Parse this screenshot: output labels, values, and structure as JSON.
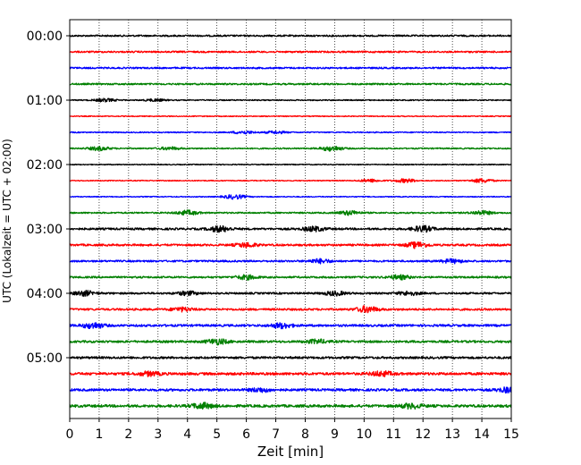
{
  "chart_data": {
    "type": "line",
    "title": "",
    "xlabel": "Zeit  [min]",
    "ylabel": "UTC (Lokalzeit = UTC + 02:00)",
    "xlim": [
      0,
      15
    ],
    "x_ticks": [
      "0",
      "1",
      "2",
      "3",
      "4",
      "5",
      "6",
      "7",
      "8",
      "9",
      "10",
      "11",
      "12",
      "13",
      "14",
      "15"
    ],
    "y_tick_labels": [
      "00:00",
      "01:00",
      "02:00",
      "03:00",
      "04:00",
      "05:00"
    ],
    "grid": "vertical dotted lines at each minute",
    "colors": [
      "#000000",
      "#ff0000",
      "#0000ff",
      "#008000"
    ],
    "traces": [
      {
        "start": "00:00",
        "color": "#000000",
        "noise": 0.9,
        "bursts": []
      },
      {
        "start": "00:15",
        "color": "#ff0000",
        "noise": 0.9,
        "bursts": []
      },
      {
        "start": "00:30",
        "color": "#0000ff",
        "noise": 0.9,
        "bursts": []
      },
      {
        "start": "00:45",
        "color": "#008000",
        "noise": 0.9,
        "bursts": []
      },
      {
        "start": "01:00",
        "color": "#000000",
        "noise": 0.6,
        "bursts": [
          {
            "t": 1.2,
            "a": 1.6
          },
          {
            "t": 2.9,
            "a": 1.2
          }
        ]
      },
      {
        "start": "01:15",
        "color": "#ff0000",
        "noise": 0.5,
        "bursts": []
      },
      {
        "start": "01:30",
        "color": "#0000ff",
        "noise": 0.6,
        "bursts": [
          {
            "t": 5.9,
            "a": 1.6
          },
          {
            "t": 7.0,
            "a": 1.3
          }
        ]
      },
      {
        "start": "01:45",
        "color": "#008000",
        "noise": 0.7,
        "bursts": [
          {
            "t": 1.0,
            "a": 2.0
          },
          {
            "t": 3.4,
            "a": 1.4
          },
          {
            "t": 8.9,
            "a": 2.6
          }
        ]
      },
      {
        "start": "02:00",
        "color": "#000000",
        "noise": 0.5,
        "bursts": []
      },
      {
        "start": "02:15",
        "color": "#ff0000",
        "noise": 0.5,
        "bursts": [
          {
            "t": 10.2,
            "a": 1.6
          },
          {
            "t": 11.4,
            "a": 2.0
          },
          {
            "t": 14.0,
            "a": 2.2
          }
        ]
      },
      {
        "start": "02:30",
        "color": "#0000ff",
        "noise": 0.5,
        "bursts": [
          {
            "t": 5.6,
            "a": 2.4
          }
        ]
      },
      {
        "start": "02:45",
        "color": "#008000",
        "noise": 0.8,
        "bursts": [
          {
            "t": 4.0,
            "a": 2.4
          },
          {
            "t": 9.5,
            "a": 2.2
          },
          {
            "t": 14.0,
            "a": 2.0
          }
        ]
      },
      {
        "start": "03:00",
        "color": "#000000",
        "noise": 1.1,
        "bursts": [
          {
            "t": 5.1,
            "a": 3.0
          },
          {
            "t": 8.3,
            "a": 2.4
          },
          {
            "t": 12.0,
            "a": 3.0
          }
        ]
      },
      {
        "start": "03:15",
        "color": "#ff0000",
        "noise": 1.1,
        "bursts": [
          {
            "t": 6.0,
            "a": 2.4
          },
          {
            "t": 11.8,
            "a": 3.0
          }
        ]
      },
      {
        "start": "03:30",
        "color": "#0000ff",
        "noise": 1.0,
        "bursts": [
          {
            "t": 8.5,
            "a": 2.2
          },
          {
            "t": 13.0,
            "a": 2.0
          }
        ]
      },
      {
        "start": "03:45",
        "color": "#008000",
        "noise": 1.0,
        "bursts": [
          {
            "t": 6.0,
            "a": 2.2
          },
          {
            "t": 11.2,
            "a": 2.2
          }
        ]
      },
      {
        "start": "04:00",
        "color": "#000000",
        "noise": 1.0,
        "bursts": [
          {
            "t": 0.5,
            "a": 2.6
          },
          {
            "t": 4.0,
            "a": 2.0
          },
          {
            "t": 9.0,
            "a": 2.2
          },
          {
            "t": 11.5,
            "a": 2.0
          }
        ]
      },
      {
        "start": "04:15",
        "color": "#ff0000",
        "noise": 1.1,
        "bursts": [
          {
            "t": 3.8,
            "a": 2.0
          },
          {
            "t": 10.1,
            "a": 3.2
          }
        ]
      },
      {
        "start": "04:30",
        "color": "#0000ff",
        "noise": 1.2,
        "bursts": [
          {
            "t": 0.8,
            "a": 3.0
          },
          {
            "t": 7.2,
            "a": 2.6
          }
        ]
      },
      {
        "start": "04:45",
        "color": "#008000",
        "noise": 1.2,
        "bursts": [
          {
            "t": 5.0,
            "a": 2.8
          },
          {
            "t": 8.4,
            "a": 2.0
          }
        ]
      },
      {
        "start": "05:00",
        "color": "#000000",
        "noise": 1.2,
        "bursts": []
      },
      {
        "start": "05:15",
        "color": "#ff0000",
        "noise": 1.4,
        "bursts": [
          {
            "t": 2.7,
            "a": 2.0
          },
          {
            "t": 10.6,
            "a": 2.4
          }
        ]
      },
      {
        "start": "05:30",
        "color": "#0000ff",
        "noise": 1.3,
        "bursts": [
          {
            "t": 6.5,
            "a": 2.0
          },
          {
            "t": 14.9,
            "a": 2.4
          }
        ]
      },
      {
        "start": "05:45",
        "color": "#008000",
        "noise": 1.4,
        "bursts": [
          {
            "t": 4.5,
            "a": 3.0
          },
          {
            "t": 11.6,
            "a": 2.4
          }
        ]
      }
    ]
  }
}
